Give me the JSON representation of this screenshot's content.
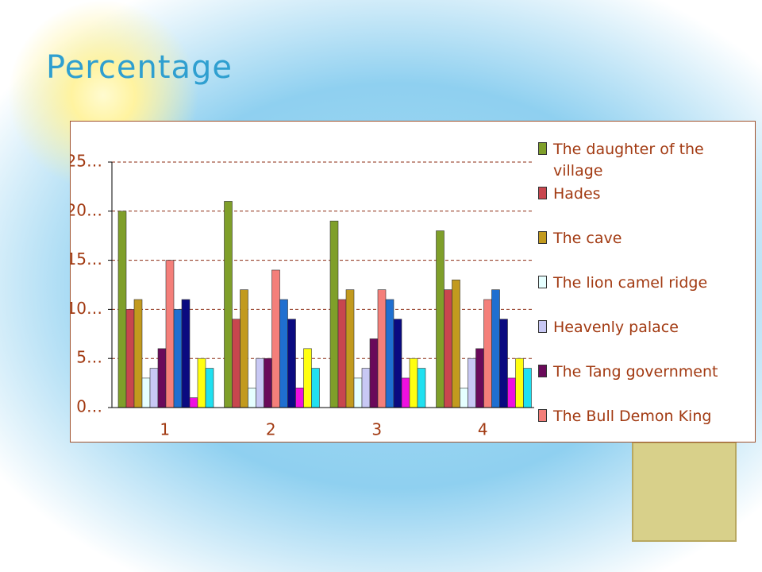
{
  "chart_data": {
    "type": "bar",
    "title": "Percentage",
    "categories": [
      "1",
      "2",
      "3",
      "4"
    ],
    "ylim": [
      0,
      25
    ],
    "yticks": [
      {
        "value": 0,
        "label": "0…"
      },
      {
        "value": 5,
        "label": "5…"
      },
      {
        "value": 10,
        "label": "10…"
      },
      {
        "value": 15,
        "label": "15…"
      },
      {
        "value": 20,
        "label": "20…"
      },
      {
        "value": 25,
        "label": "25…"
      }
    ],
    "grid": true,
    "series": [
      {
        "name": "The daughter of the village",
        "color": "#7f9f2a",
        "values": [
          20,
          21,
          19,
          18
        ]
      },
      {
        "name": "Hades",
        "color": "#c8464e",
        "values": [
          10,
          9,
          11,
          12
        ]
      },
      {
        "name": "The cave",
        "color": "#c29a1e",
        "values": [
          11,
          12,
          12,
          13
        ]
      },
      {
        "name": "The lion camel ridge",
        "color": "#e6ffff",
        "values": [
          3,
          2,
          3,
          2
        ]
      },
      {
        "name": "Heavenly palace",
        "color": "#c8c8f4",
        "values": [
          4,
          5,
          4,
          5
        ]
      },
      {
        "name": "The Tang government",
        "color": "#6a0a5a",
        "values": [
          6,
          5,
          7,
          6
        ]
      },
      {
        "name": "The Bull Demon King",
        "color": "#f47f7a",
        "values": [
          15,
          14,
          12,
          11
        ]
      },
      {
        "color": "#1f6fd0",
        "values": [
          10,
          11,
          11,
          12
        ]
      },
      {
        "color": "#0a0a80",
        "values": [
          11,
          9,
          9,
          9
        ]
      },
      {
        "color": "#ee10e0",
        "values": [
          1,
          2,
          3,
          3
        ]
      },
      {
        "color": "#ffff10",
        "values": [
          5,
          6,
          5,
          5
        ]
      },
      {
        "color": "#20e0f0",
        "values": [
          4,
          4,
          4,
          4
        ]
      }
    ]
  }
}
